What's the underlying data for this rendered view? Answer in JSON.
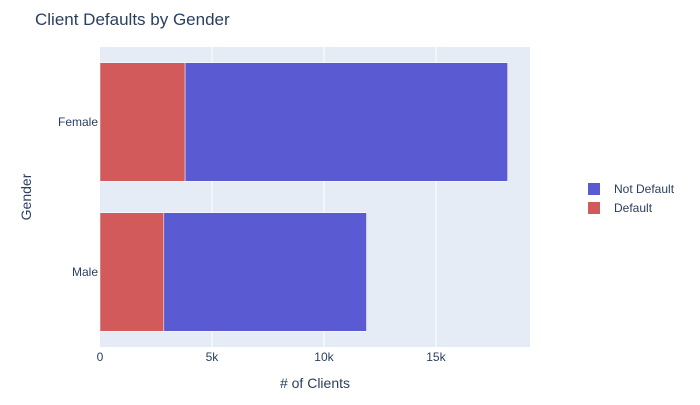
{
  "chart_data": {
    "type": "bar",
    "orientation": "horizontal",
    "barmode": "stack",
    "title": "Client Defaults by Gender",
    "xlabel": "# of Clients",
    "ylabel": "Gender",
    "categories": [
      "Female",
      "Male"
    ],
    "series": [
      {
        "name": "Default",
        "color": "#d35a5a",
        "values": [
          3800,
          2850
        ]
      },
      {
        "name": "Not Default",
        "color": "#5a5ad2",
        "values": [
          14400,
          9050
        ]
      }
    ],
    "xlim": [
      0,
      19200
    ],
    "xticks": [
      0,
      5000,
      10000,
      15000
    ],
    "xtick_labels": [
      "0",
      "5k",
      "10k",
      "15k"
    ],
    "grid": true,
    "legend_position": "right",
    "legend_order": [
      "Not Default",
      "Default"
    ],
    "plot_background": "#e5ecf6"
  }
}
